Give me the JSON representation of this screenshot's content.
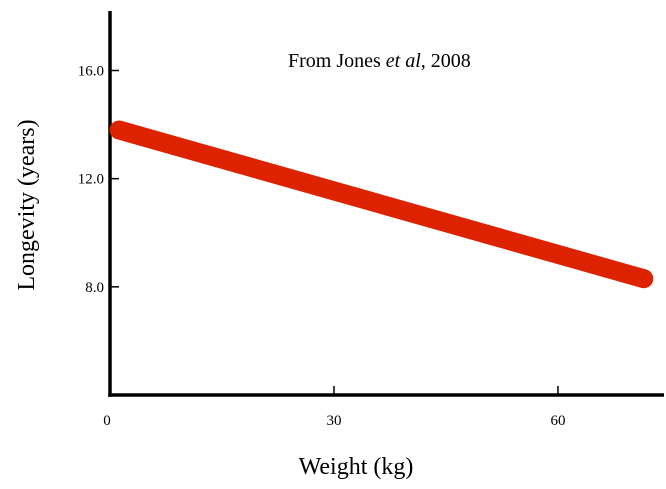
{
  "chart_data": {
    "type": "line",
    "title": "",
    "annotation": {
      "prefix": "From Jones ",
      "italic": "et al",
      "suffix": ", 2008"
    },
    "xlabel": "Weight (kg)",
    "ylabel": "Longevity (years)",
    "xlim": [
      0,
      73
    ],
    "ylim": [
      4.0,
      18.2
    ],
    "x_ticks": [
      {
        "value": 0,
        "label": "0"
      },
      {
        "value": 30,
        "label": "30"
      },
      {
        "value": 60,
        "label": "60"
      }
    ],
    "y_ticks": [
      {
        "value": 8.0,
        "label": "8.0"
      },
      {
        "value": 12.0,
        "label": "12.0"
      },
      {
        "value": 16.0,
        "label": "16.0"
      }
    ],
    "grid": false,
    "series": [
      {
        "x": [
          1.2,
          71.5
        ],
        "y": [
          13.8,
          8.3
        ],
        "color": "#dd2200"
      }
    ]
  }
}
